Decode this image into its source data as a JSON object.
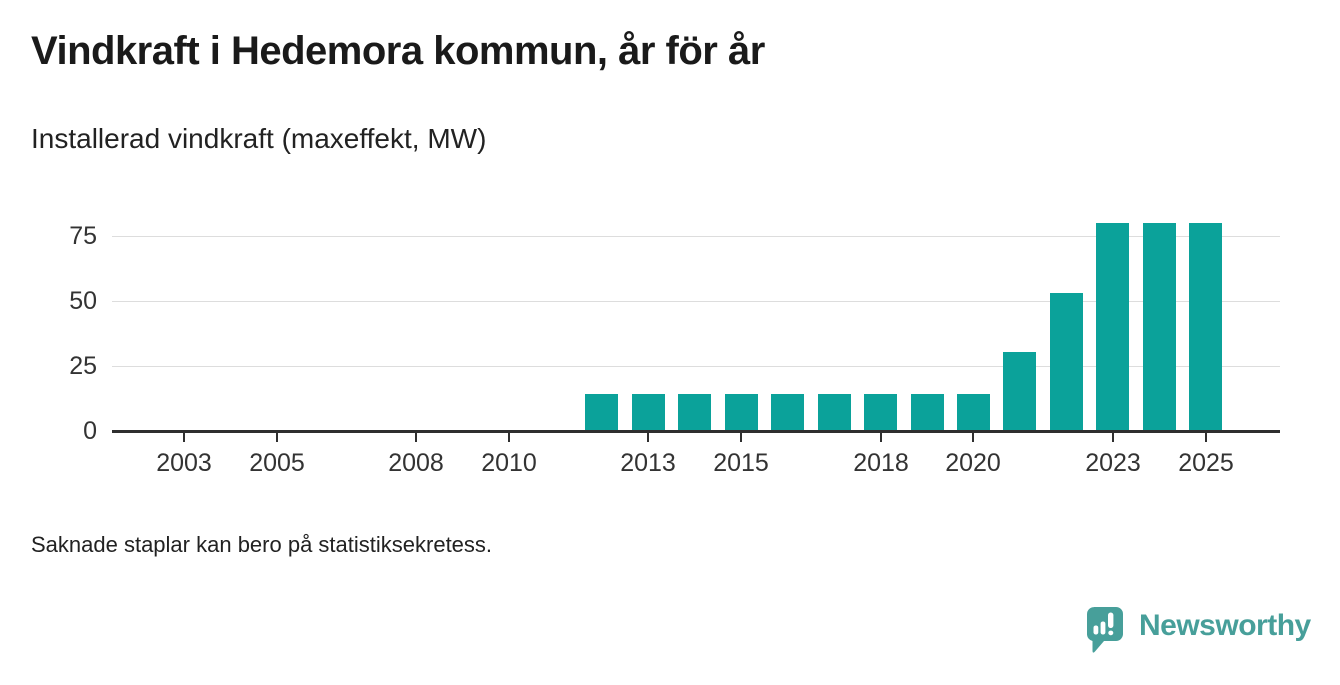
{
  "header": {
    "title": "Vindkraft i Hedemora kommun, år för år",
    "subtitle": "Installerad vindkraft (maxeffekt, MW)"
  },
  "chart_data": {
    "type": "bar",
    "title": "Vindkraft i Hedemora kommun, år för år",
    "subtitle": "Installerad vindkraft (maxeffekt, MW)",
    "ylabel": "Installerad vindkraft (maxeffekt, MW)",
    "xlabel": "",
    "unit": "MW",
    "x": [
      2012,
      2013,
      2014,
      2015,
      2016,
      2017,
      2018,
      2019,
      2020,
      2021,
      2022,
      2023,
      2024,
      2025
    ],
    "values": [
      14.4,
      14.4,
      14.4,
      14.4,
      14.4,
      14.4,
      14.4,
      14.4,
      14.4,
      30.5,
      53,
      80,
      80,
      80
    ],
    "xticks": [
      2003,
      2005,
      2008,
      2010,
      2013,
      2015,
      2018,
      2020,
      2023,
      2025
    ],
    "yticks": [
      0,
      25,
      50,
      75
    ],
    "xlim": [
      2001.45,
      2026.6
    ],
    "ylim": [
      0,
      85
    ],
    "grid": "horizontal-only",
    "legend": "none",
    "missing_years_shown_without_bars": [
      2001,
      2002,
      2003,
      2004,
      2005,
      2006,
      2007,
      2008,
      2009,
      2010,
      2011
    ],
    "bar_color": "#0ba29a",
    "axis_color": "#2f2f2f",
    "gridline_color": "#dddddd",
    "tick_label_color": "#333333"
  },
  "footer": {
    "note": "Saknade staplar kan bero på statistiksekretess."
  },
  "brand": {
    "name": "Newsworthy",
    "color": "#479f9a",
    "icon": "speech-bubble-bar-chart-icon"
  }
}
